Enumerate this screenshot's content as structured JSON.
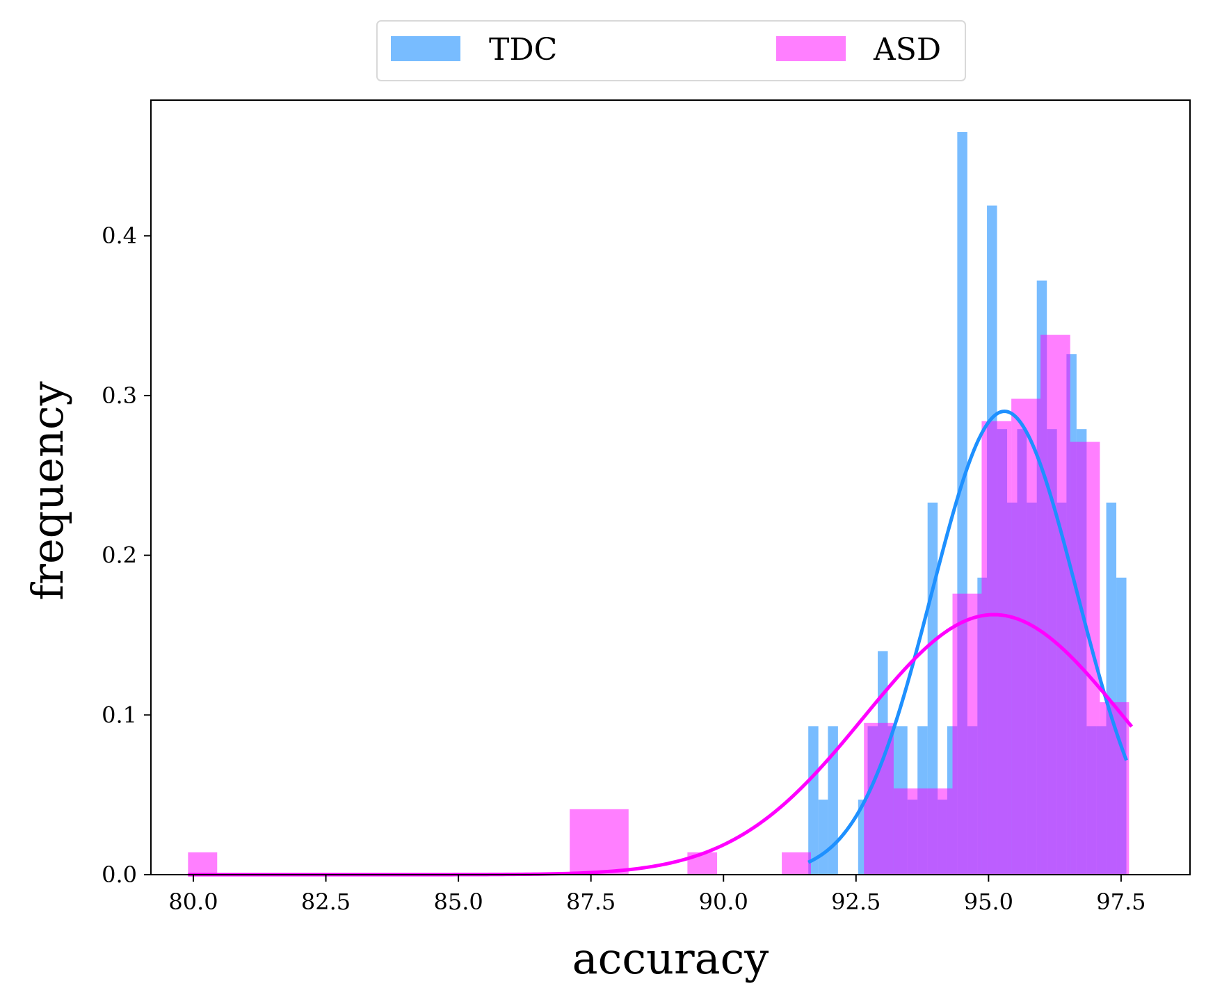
{
  "chart_data": {
    "type": "bar",
    "xlabel": "accuracy",
    "ylabel": "frequency",
    "xlim": [
      79.2,
      98.8
    ],
    "ylim": [
      0,
      0.485
    ],
    "xticks": [
      {
        "value": 80.0,
        "label": "80.0"
      },
      {
        "value": 82.5,
        "label": "82.5"
      },
      {
        "value": 85.0,
        "label": "85.0"
      },
      {
        "value": 87.5,
        "label": "87.5"
      },
      {
        "value": 90.0,
        "label": "90.0"
      },
      {
        "value": 92.5,
        "label": "92.5"
      },
      {
        "value": 95.0,
        "label": "95.0"
      },
      {
        "value": 97.5,
        "label": "97.5"
      }
    ],
    "yticks": [
      {
        "value": 0.0,
        "label": "0.0"
      },
      {
        "value": 0.1,
        "label": "0.1"
      },
      {
        "value": 0.2,
        "label": "0.2"
      },
      {
        "value": 0.3,
        "label": "0.3"
      },
      {
        "value": 0.4,
        "label": "0.4"
      }
    ],
    "grid": false,
    "legend_position": "top-center",
    "series": [
      {
        "name": "TDC",
        "color": "#1e90ff",
        "bar_alpha": 0.6,
        "bins": [
          {
            "x0": 91.6,
            "x1": 91.79,
            "value": 0.093
          },
          {
            "x0": 91.79,
            "x1": 91.97,
            "value": 0.047
          },
          {
            "x0": 91.97,
            "x1": 92.16,
            "value": 0.093
          },
          {
            "x0": 92.16,
            "x1": 92.54,
            "value": 0.0
          },
          {
            "x0": 92.54,
            "x1": 92.72,
            "value": 0.047
          },
          {
            "x0": 92.72,
            "x1": 92.91,
            "value": 0.093
          },
          {
            "x0": 92.91,
            "x1": 93.1,
            "value": 0.14
          },
          {
            "x0": 93.1,
            "x1": 93.29,
            "value": 0.093
          },
          {
            "x0": 93.29,
            "x1": 93.47,
            "value": 0.093
          },
          {
            "x0": 93.47,
            "x1": 93.66,
            "value": 0.047
          },
          {
            "x0": 93.66,
            "x1": 93.85,
            "value": 0.093
          },
          {
            "x0": 93.85,
            "x1": 94.04,
            "value": 0.233
          },
          {
            "x0": 94.04,
            "x1": 94.22,
            "value": 0.047
          },
          {
            "x0": 94.22,
            "x1": 94.41,
            "value": 0.093
          },
          {
            "x0": 94.41,
            "x1": 94.6,
            "value": 0.465
          },
          {
            "x0": 94.6,
            "x1": 94.79,
            "value": 0.093
          },
          {
            "x0": 94.79,
            "x1": 94.97,
            "value": 0.186
          },
          {
            "x0": 94.97,
            "x1": 95.16,
            "value": 0.419
          },
          {
            "x0": 95.16,
            "x1": 95.35,
            "value": 0.279
          },
          {
            "x0": 95.35,
            "x1": 95.54,
            "value": 0.233
          },
          {
            "x0": 95.54,
            "x1": 95.72,
            "value": 0.279
          },
          {
            "x0": 95.72,
            "x1": 95.91,
            "value": 0.233
          },
          {
            "x0": 95.91,
            "x1": 96.1,
            "value": 0.372
          },
          {
            "x0": 96.1,
            "x1": 96.29,
            "value": 0.279
          },
          {
            "x0": 96.29,
            "x1": 96.47,
            "value": 0.233
          },
          {
            "x0": 96.47,
            "x1": 96.66,
            "value": 0.326
          },
          {
            "x0": 96.66,
            "x1": 96.85,
            "value": 0.279
          },
          {
            "x0": 96.85,
            "x1": 97.04,
            "value": 0.093
          },
          {
            "x0": 97.04,
            "x1": 97.22,
            "value": 0.093
          },
          {
            "x0": 97.22,
            "x1": 97.41,
            "value": 0.233
          },
          {
            "x0": 97.41,
            "x1": 97.6,
            "value": 0.186
          }
        ],
        "fit": {
          "mean": 95.3,
          "std": 1.375,
          "x_range": [
            91.6,
            97.6
          ]
        }
      },
      {
        "name": "ASD",
        "color": "#ff00ff",
        "bar_alpha": 0.5,
        "bins": [
          {
            "x0": 79.9,
            "x1": 80.45,
            "value": 0.014
          },
          {
            "x0": 87.1,
            "x1": 88.21,
            "value": 0.041
          },
          {
            "x0": 89.32,
            "x1": 89.88,
            "value": 0.014
          },
          {
            "x0": 91.1,
            "x1": 91.65,
            "value": 0.014
          },
          {
            "x0": 92.65,
            "x1": 93.21,
            "value": 0.095
          },
          {
            "x0": 93.21,
            "x1": 94.32,
            "value": 0.054
          },
          {
            "x0": 94.32,
            "x1": 94.87,
            "value": 0.176
          },
          {
            "x0": 94.87,
            "x1": 95.43,
            "value": 0.284
          },
          {
            "x0": 95.43,
            "x1": 95.98,
            "value": 0.298
          },
          {
            "x0": 95.98,
            "x1": 96.54,
            "value": 0.338
          },
          {
            "x0": 96.54,
            "x1": 97.1,
            "value": 0.271
          },
          {
            "x0": 97.1,
            "x1": 97.65,
            "value": 0.108
          }
        ],
        "fit": {
          "mean": 95.1,
          "std": 2.45,
          "x_range": [
            79.9,
            97.7
          ]
        }
      }
    ]
  }
}
